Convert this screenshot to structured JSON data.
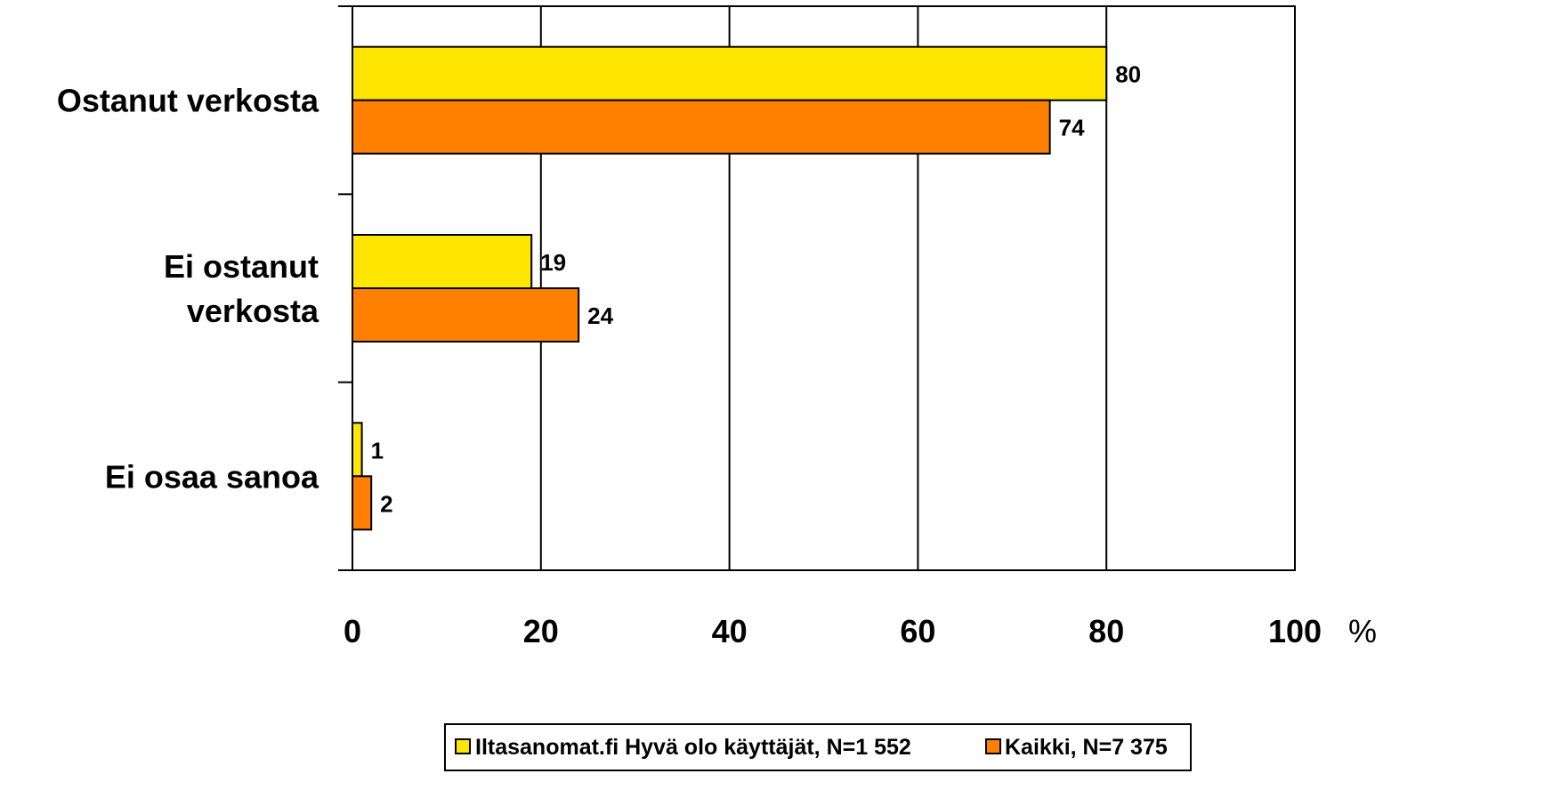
{
  "chart_data": {
    "type": "bar",
    "orientation": "horizontal",
    "categories": [
      [
        "Ostanut verkosta"
      ],
      [
        "Ei ostanut",
        "verkosta"
      ],
      [
        "Ei osaa sanoa"
      ]
    ],
    "series": [
      {
        "name": "Iltasanomat.fi Hyvä olo käyttäjät, N=1 552",
        "values": [
          80,
          19,
          1
        ],
        "color": "#FFE600"
      },
      {
        "name": "Kaikki, N=7 375",
        "values": [
          74,
          24,
          2
        ],
        "color": "#FF8000"
      }
    ],
    "xlim": [
      0,
      100
    ],
    "xticks": [
      0,
      20,
      40,
      60,
      80,
      100
    ],
    "xunit": "%",
    "grid": "vertical",
    "legend_position": "bottom",
    "title": "",
    "xlabel": "",
    "ylabel": ""
  }
}
